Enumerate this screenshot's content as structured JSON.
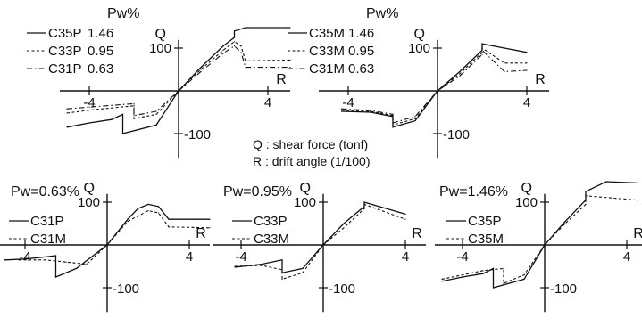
{
  "notes": {
    "q_def": "Q : shear force (tonf)",
    "r_def": "R : drift angle (1/100)"
  },
  "chart_data": [
    {
      "type": "line",
      "title": "",
      "pw_heading": "Pw%",
      "xlabel": "R",
      "ylabel": "Q",
      "xlim": [
        -5,
        5
      ],
      "ylim": [
        -140,
        140
      ],
      "x_ticks": [
        "-4",
        "4"
      ],
      "y_ticks": [
        "100",
        "-100"
      ],
      "grid": false,
      "series": [
        {
          "name": "C35P",
          "pw": "1.46",
          "style": "solid",
          "x": [
            -5,
            -4,
            -3,
            -2.5,
            -2.5,
            -1,
            0,
            1,
            2,
            2.5,
            2.5,
            3,
            5
          ],
          "y": [
            -85,
            -75,
            -67,
            -55,
            -100,
            -80,
            0,
            55,
            105,
            125,
            140,
            148,
            148
          ]
        },
        {
          "name": "C33P",
          "pw": "0.95",
          "style": "dashed",
          "x": [
            -5,
            -4,
            -3,
            -2,
            -2,
            -1,
            0,
            1,
            2,
            2.5,
            2.8,
            3,
            5
          ],
          "y": [
            -52,
            -45,
            -40,
            -35,
            -65,
            -55,
            0,
            50,
            95,
            115,
            105,
            70,
            72
          ]
        },
        {
          "name": "C31P",
          "pw": "0.63",
          "style": "dashdot",
          "x": [
            -5,
            -4,
            -3,
            -2,
            -2,
            -1,
            0,
            1,
            2,
            2.5,
            2.8,
            3,
            5
          ],
          "y": [
            -42,
            -38,
            -34,
            -30,
            -58,
            -48,
            0,
            45,
            88,
            105,
            90,
            55,
            55
          ]
        }
      ]
    },
    {
      "type": "line",
      "title": "",
      "pw_heading": "Pw%",
      "xlabel": "R",
      "ylabel": "Q",
      "xlim": [
        -5,
        5
      ],
      "ylim": [
        -140,
        140
      ],
      "x_ticks": [
        "-4",
        "4"
      ],
      "y_ticks": [
        "100",
        "-100"
      ],
      "grid": false,
      "series": [
        {
          "name": "C35M",
          "pw": "1.46",
          "style": "solid",
          "x": [
            -4.3,
            -3,
            -2,
            -2,
            -1,
            0,
            1,
            2,
            2,
            3,
            4
          ],
          "y": [
            -48,
            -50,
            -60,
            -85,
            -70,
            0,
            45,
            95,
            110,
            100,
            90
          ]
        },
        {
          "name": "C33M",
          "pw": "0.95",
          "style": "dashed",
          "x": [
            -4.3,
            -3,
            -2,
            -2,
            -1,
            0,
            1,
            2,
            2,
            3,
            4
          ],
          "y": [
            -45,
            -48,
            -58,
            -80,
            -65,
            0,
            40,
            90,
            100,
            65,
            65
          ]
        },
        {
          "name": "C31M",
          "pw": "0.63",
          "style": "dashdot",
          "x": [
            -4.3,
            -3,
            -2,
            -2,
            -1,
            0,
            1,
            2,
            2,
            3,
            4
          ],
          "y": [
            -42,
            -46,
            -55,
            -75,
            -60,
            0,
            35,
            85,
            95,
            45,
            48
          ]
        }
      ]
    },
    {
      "type": "line",
      "title": "Pw=0.63%",
      "xlabel": "R",
      "ylabel": "Q",
      "xlim": [
        -5,
        5
      ],
      "ylim": [
        -140,
        140
      ],
      "x_ticks": [
        "-4",
        "4"
      ],
      "y_ticks": [
        "100",
        "-100"
      ],
      "grid": false,
      "series": [
        {
          "name": "C31P",
          "style": "solid",
          "x": [
            -5,
            -4,
            -3,
            -2.5,
            -2.5,
            -1.5,
            0,
            1,
            1.5,
            2,
            2.5,
            3,
            5
          ],
          "y": [
            -35,
            -33,
            -28,
            -25,
            -75,
            -55,
            0,
            60,
            85,
            95,
            90,
            60,
            60
          ]
        },
        {
          "name": "C31M",
          "style": "dashed",
          "x": [
            -4.3,
            -3,
            -2,
            -1,
            0,
            1,
            2,
            2.5,
            3,
            5
          ],
          "y": [
            -35,
            -35,
            -40,
            -45,
            0,
            55,
            80,
            75,
            42,
            40
          ]
        }
      ]
    },
    {
      "type": "line",
      "title": "Pw=0.95%",
      "xlabel": "R",
      "ylabel": "Q",
      "xlim": [
        -5,
        5
      ],
      "ylim": [
        -140,
        140
      ],
      "x_ticks": [
        "-4",
        "4"
      ],
      "y_ticks": [
        "100",
        "-100"
      ],
      "grid": false,
      "series": [
        {
          "name": "C33P",
          "style": "solid",
          "x": [
            -4.3,
            -3,
            -2,
            -2,
            -1,
            0,
            1,
            2,
            2,
            4
          ],
          "y": [
            -52,
            -45,
            -35,
            -65,
            -55,
            0,
            50,
            90,
            100,
            72
          ]
        },
        {
          "name": "C33M",
          "style": "dashed",
          "x": [
            -4.3,
            -3,
            -2,
            -2,
            -1,
            0,
            1,
            2,
            2,
            4
          ],
          "y": [
            -50,
            -48,
            -58,
            -80,
            -65,
            0,
            40,
            85,
            95,
            60
          ]
        }
      ]
    },
    {
      "type": "line",
      "title": "Pw=1.46%",
      "xlabel": "R",
      "ylabel": "Q",
      "xlim": [
        -5,
        5
      ],
      "ylim": [
        -140,
        140
      ],
      "x_ticks": [
        "-4",
        "4"
      ],
      "y_ticks": [
        "100",
        "-100"
      ],
      "grid": false,
      "series": [
        {
          "name": "C35P",
          "style": "solid",
          "x": [
            -5,
            -4,
            -3,
            -2.5,
            -2.5,
            -1,
            0,
            1,
            2,
            2,
            3,
            4.5
          ],
          "y": [
            -85,
            -75,
            -67,
            -55,
            -100,
            -80,
            0,
            55,
            105,
            125,
            148,
            145
          ]
        },
        {
          "name": "C35M",
          "style": "dashed",
          "x": [
            -5,
            -3,
            -2,
            -2,
            -1,
            0,
            1,
            2,
            2,
            4.5
          ],
          "y": [
            -80,
            -60,
            -55,
            -90,
            -70,
            0,
            50,
            95,
            115,
            105
          ]
        }
      ]
    }
  ]
}
